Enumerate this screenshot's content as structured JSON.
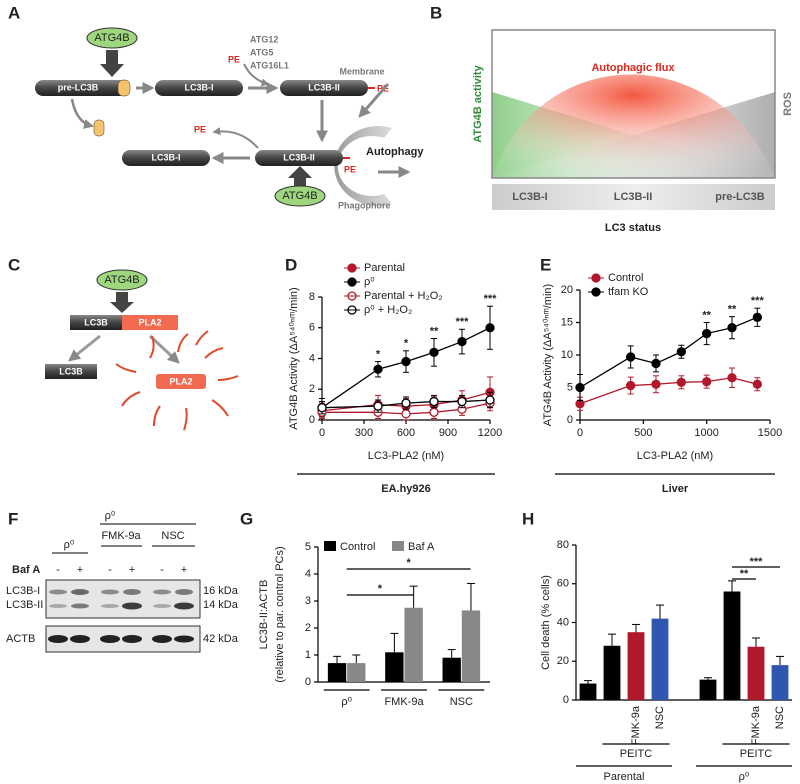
{
  "panel_labels": [
    "A",
    "B",
    "C",
    "D",
    "E",
    "F",
    "G",
    "H"
  ],
  "diagram_a": {
    "enzyme_top": "ATG4B",
    "pre_lc3b": "pre-LC3B",
    "lc3b_i_top": "LC3B-I",
    "lc3b_ii_top": "LC3B-II",
    "pe_conjugate": "PE",
    "pe_top": "PE",
    "conjugation": [
      "ATG12",
      "ATG5",
      "ATG16L1"
    ],
    "membrane": "Membrane",
    "lc3b_ii_bottom": "LC3B-II",
    "pe_bottom": "PE",
    "lc3b_i_bottom": "LC3B-I",
    "pe_released": "PE",
    "autophagy": "Autophagy",
    "enzyme_bottom": "ATG4B",
    "phagophore": "Phagophore"
  },
  "diagram_b": {
    "flux": "Autophagic flux",
    "left_axis": "ATG4B activity",
    "right_axis": "ROS",
    "states": [
      "LC3B-I",
      "LC3B-II",
      "pre-LC3B"
    ],
    "x_label": "LC3 status"
  },
  "diagram_c": {
    "enzyme": "ATG4B",
    "substrate_lc3b": "LC3B",
    "substrate_pla2": "PLA2",
    "product_lc3b": "LC3B",
    "product_pla2": "PLA2"
  },
  "blot_f": {
    "group_rho_left": "ρ⁰",
    "group_rho_right": "ρ⁰",
    "inhibitors": [
      "FMK-9a",
      "NSC"
    ],
    "treatment": "Baf A",
    "signs": [
      "-",
      "+",
      "-",
      "+",
      "-",
      "+"
    ],
    "bands": [
      "LC3B-I",
      "LC3B-II",
      "ACTB"
    ],
    "sizes": [
      "16 kDa",
      "14 kDa",
      "42 kDa"
    ]
  },
  "chart_data": [
    {
      "type": "line",
      "x": [
        0,
        400,
        600,
        800,
        1000,
        1200
      ],
      "xlim": [
        0,
        1200
      ],
      "xticks": [
        0,
        300,
        600,
        900,
        1200
      ],
      "ylim": [
        0,
        8
      ],
      "yticks": [
        0,
        2,
        4,
        6,
        8
      ],
      "x_label": "LC3-PLA2 (nM)",
      "y_label": "ATG4B Activity (ΔA⁵⁴⁰ⁿᵐ/min)",
      "sample_label": "EA.hy926",
      "series": [
        {
          "name": "Parental",
          "color": "#b2182b",
          "marker": "filled",
          "values": [
            0.6,
            1.0,
            0.9,
            1.0,
            1.3,
            1.8
          ],
          "errors": [
            0.5,
            0.6,
            0.5,
            0.5,
            0.6,
            1.0
          ]
        },
        {
          "name": "ρ⁰",
          "color": "#000000",
          "marker": "filled",
          "values": [
            0.8,
            3.3,
            3.8,
            4.4,
            5.1,
            6.0
          ],
          "errors": [
            0.6,
            0.5,
            0.7,
            0.9,
            0.8,
            1.4
          ]
        },
        {
          "name": "Parental + H₂O₂",
          "color": "#b2182b",
          "marker": "open",
          "values": [
            0.5,
            0.5,
            0.4,
            0.5,
            0.7,
            1.1
          ],
          "errors": [
            0.4,
            0.4,
            0.4,
            0.4,
            0.4,
            0.5
          ]
        },
        {
          "name": "ρ⁰ + H₂O₂",
          "color": "#000000",
          "marker": "open",
          "values": [
            0.8,
            0.9,
            1.1,
            1.2,
            1.2,
            1.3
          ],
          "errors": [
            0.4,
            0.4,
            0.4,
            0.4,
            0.4,
            0.5
          ]
        }
      ],
      "annotations": [
        null,
        "*",
        "*",
        "**",
        "***",
        "***"
      ]
    },
    {
      "type": "line",
      "x": [
        0,
        400,
        600,
        800,
        1000,
        1200,
        1400
      ],
      "xlim": [
        0,
        1500
      ],
      "xticks": [
        0,
        500,
        1000,
        1500
      ],
      "ylim": [
        0,
        20
      ],
      "yticks": [
        0,
        5,
        10,
        15,
        20
      ],
      "x_label": "LC3-PLA2 (nM)",
      "y_label": "ATG4B Activity (ΔA⁵⁴⁰ⁿᵐ/min)",
      "sample_label": "Liver",
      "series": [
        {
          "name": "Control",
          "color": "#b2182b",
          "marker": "filled",
          "values": [
            2.5,
            5.3,
            5.5,
            5.8,
            5.9,
            6.5,
            5.5
          ],
          "errors": [
            1.0,
            1.3,
            1.3,
            1.0,
            1.0,
            1.5,
            1.0
          ]
        },
        {
          "name": "tfam KO",
          "color": "#000000",
          "marker": "filled",
          "values": [
            5.0,
            9.7,
            8.7,
            10.5,
            13.3,
            14.2,
            15.8
          ],
          "errors": [
            2.0,
            1.7,
            1.3,
            1.0,
            1.7,
            1.7,
            1.4
          ]
        }
      ],
      "annotations": [
        null,
        null,
        null,
        null,
        "**",
        "**",
        "***"
      ]
    },
    {
      "type": "bar",
      "categories": [
        "ρ⁰",
        "FMK-9a",
        "NSC"
      ],
      "ylim": [
        0,
        5
      ],
      "yticks": [
        0,
        1,
        2,
        3,
        4,
        5
      ],
      "y_label": "LC3B-II:ACTB",
      "y_label_note": "(relative to par. control PCs)",
      "series": [
        {
          "name": "Control",
          "color": "#000000",
          "values": [
            0.7,
            1.1,
            0.9
          ],
          "errors": [
            0.25,
            0.7,
            0.3
          ]
        },
        {
          "name": "Baf A",
          "color": "#888888",
          "values": [
            0.7,
            2.75,
            2.65
          ],
          "errors": [
            0.3,
            0.8,
            1.0
          ]
        }
      ],
      "significance": [
        "*",
        "*"
      ]
    },
    {
      "type": "bar",
      "categories": [
        null,
        null,
        "FMK-9a",
        "NSC",
        null,
        null,
        "FMK-9a",
        "NSC"
      ],
      "ylim": [
        0,
        80
      ],
      "yticks": [
        0,
        20,
        40,
        60,
        80
      ],
      "y_label": "Cell death (% cells)",
      "values": [
        8.5,
        28,
        35,
        42,
        10.5,
        56,
        27.5,
        18
      ],
      "errors": [
        1.5,
        6,
        4,
        7,
        1,
        5.5,
        4.5,
        4.5
      ],
      "colors": [
        "#000000",
        "#000000",
        "#b2182b",
        "#2f56b0",
        "#000000",
        "#000000",
        "#b2182b",
        "#2f56b0"
      ],
      "treatment_labels": [
        "PEITC",
        "PEITC"
      ],
      "group_labels": [
        "Parental",
        "ρ⁰"
      ],
      "significance": [
        "**",
        "***"
      ]
    }
  ]
}
